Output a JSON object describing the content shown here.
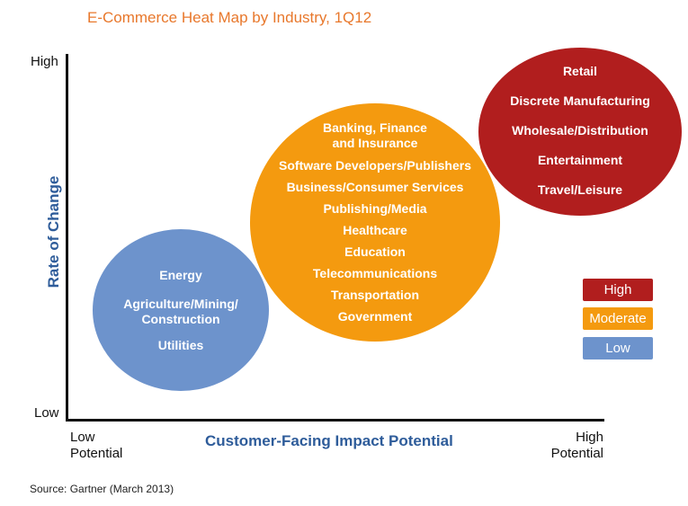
{
  "title": "E-Commerce Heat Map by Industry, 1Q12",
  "y_axis": {
    "title": "Rate of Change",
    "high": "High",
    "low": "Low"
  },
  "x_axis": {
    "title": "Customer-Facing Impact Potential",
    "low": [
      "Low",
      "Potential"
    ],
    "high": [
      "High",
      "Potential"
    ]
  },
  "bubbles": {
    "low": [
      "Energy",
      [
        "Agriculture/Mining/",
        "Construction"
      ],
      "Utilities"
    ],
    "moderate": [
      [
        "Banking, Finance",
        "and Insurance"
      ],
      "Software Developers/Publishers",
      "Business/Consumer Services",
      "Publishing/Media",
      "Healthcare",
      "Education",
      "Telecommunications",
      "Transportation",
      "Government"
    ],
    "high": [
      "Retail",
      "Discrete Manufacturing",
      "Wholesale/Distribution",
      "Entertainment",
      "Travel/Leisure"
    ]
  },
  "legend": [
    "High",
    "Moderate",
    "Low"
  ],
  "colors": {
    "high": "#b11e1e",
    "moderate": "#f49a0f",
    "low": "#6d93cc",
    "title": "#e8782c",
    "axis_title": "#2e5c9a"
  },
  "source": "Source: Gartner (March 2013)"
}
